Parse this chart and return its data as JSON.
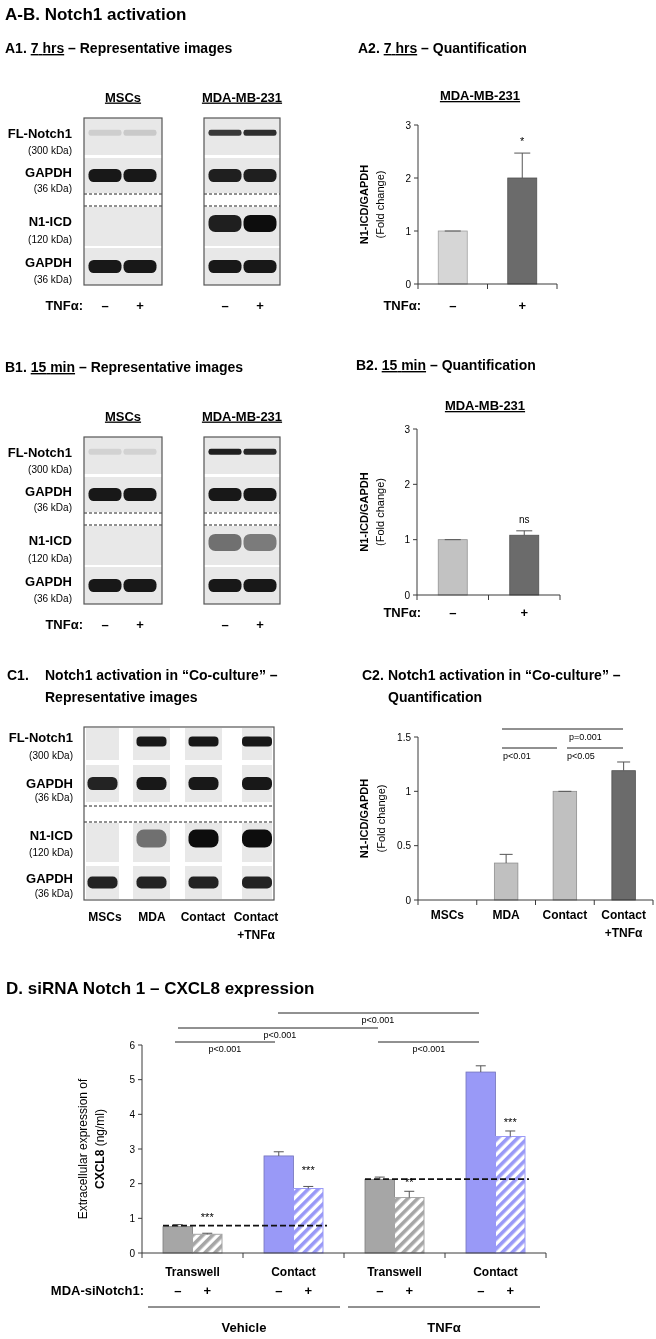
{
  "chart_data": [
    {
      "type": "other",
      "title": "A-B. Notch1 activation",
      "subtitle": "A1. 7 hrs – Representative images",
      "categories": [
        "–",
        "+",
        "–",
        "+"
      ],
      "xlabel": "TNFα:",
      "annotations": [
        "MSCs",
        "MDA-MB-231",
        "FL-Notch1",
        "(300 kDa)",
        "GAPDH",
        "(36 kDa)",
        "N1-ICD",
        "(120 kDa)",
        "GAPDH",
        "(36 kDa)"
      ]
    },
    {
      "type": "bar",
      "title": "A2. 7 hrs – Quantification",
      "subtitle": "MDA-MB-231",
      "categories": [
        "–",
        "+"
      ],
      "xlabel": "TNFα:",
      "ylabel": "N1-ICD/GAPDH\n(Fold change)",
      "values": [
        1,
        2
      ],
      "colors": [
        "#d6d6d6",
        "#6b6b6b"
      ],
      "errors": [
        0,
        [
          2,
          2.47
        ]
      ],
      "value_labels": [
        null,
        "*"
      ],
      "ylim": [
        0,
        3
      ],
      "yticks": [
        0,
        1,
        2,
        3
      ]
    },
    {
      "type": "other",
      "title": "B1. 15 min – Representative images",
      "categories": [
        "–",
        "+",
        "–",
        "+"
      ],
      "xlabel": "TNFα:",
      "annotations": [
        "MSCs",
        "MDA-MB-231",
        "FL-Notch1",
        "(300 kDa)",
        "GAPDH",
        "(36 kDa)",
        "N1-ICD",
        "(120 kDa)",
        "GAPDH",
        "(36 kDa)"
      ]
    },
    {
      "type": "bar",
      "title": "B2. 15 min – Quantification",
      "subtitle": "MDA-MB-231",
      "categories": [
        "–",
        "+"
      ],
      "xlabel": "TNFα:",
      "ylabel": "N1-ICD/GAPDH\n(Fold change)",
      "values": [
        1,
        1.08
      ],
      "colors": [
        "#c2c2c2",
        "#6b6b6b"
      ],
      "errors": [
        0,
        [
          1.08,
          1.16
        ]
      ],
      "value_labels": [
        null,
        "ns"
      ],
      "ylim": [
        0,
        3
      ],
      "yticks": [
        0,
        1,
        2,
        3
      ]
    },
    {
      "type": "other",
      "title": "C1. Notch1 activation in “Co-culture” –\nRepresentative images",
      "categories": [
        "MSCs",
        "MDA",
        "Contact",
        "Contact\n+TNFα"
      ],
      "annotations": [
        "FL-Notch1",
        "(300 kDa)",
        "GAPDH",
        "(36 kDa)",
        "N1-ICD",
        "(120 kDa)",
        "GAPDH",
        "(36 kDa)"
      ]
    },
    {
      "type": "bar",
      "title": "C2. Notch1 activation in “Co-culture” –\nQuantification",
      "categories": [
        "MSCs",
        "MDA",
        "Contact",
        "Contact\n+TNFα"
      ],
      "ylabel": "N1-ICD/GAPDH\n(Fold change)",
      "values": [
        null,
        0.34,
        1,
        1.19
      ],
      "colors": [
        null,
        "#c0c0c0",
        "#c0c0c0",
        "#6b6b6b"
      ],
      "errors": [
        null,
        [
          0.34,
          0.42
        ],
        0,
        [
          1.19,
          1.27
        ]
      ],
      "ylim": [
        0,
        1.5
      ],
      "yticks": [
        0,
        0.5,
        1,
        1.5
      ],
      "annotations": [
        "p=0.001",
        "p<0.01",
        "p<0.05"
      ]
    },
    {
      "type": "bar",
      "title": "D. siRNA Notch 1 – CXCL8 expression",
      "categories": [
        "Transwell",
        "Contact",
        "Transwell",
        "Contact"
      ],
      "xlabel": "MDA-siNotch1:",
      "ylabel": "Extracellular expression of\nCXCL8 (ng/ml)",
      "series": [
        {
          "name": "–",
          "colors": [
            "#a6a6a6",
            "#9999f7",
            "#a6a6a6",
            "#9999f7"
          ],
          "values": [
            0.76,
            2.8,
            2.12,
            5.22
          ],
          "errors": [
            [
              0.76,
              0.82
            ],
            [
              2.8,
              2.92
            ],
            [
              2.12,
              2.19
            ],
            [
              5.22,
              5.4
            ]
          ]
        },
        {
          "name": "+",
          "colors": [
            "#a6a6a6",
            "#9999f7",
            "#a6a6a6",
            "#9999f7"
          ],
          "values": [
            0.54,
            1.86,
            1.6,
            3.36
          ],
          "errors": [
            [
              0.54,
              0.57
            ],
            [
              1.86,
              1.92
            ],
            [
              1.6,
              1.78
            ],
            [
              3.36,
              3.52
            ]
          ],
          "value_labels": [
            "***",
            "***",
            "**",
            "***"
          ]
        }
      ],
      "ylim": [
        0,
        6
      ],
      "yticks": [
        0,
        1,
        2,
        3,
        4,
        5,
        6
      ],
      "ref_lines": [
        {
          "axis": "y",
          "value": 0.79,
          "line_style": "dashed"
        },
        {
          "axis": "y",
          "value": 2.13,
          "line_style": "dashed"
        }
      ],
      "annotations": [
        "p<0.001",
        "p<0.001",
        "p<0.001",
        "p<0.001",
        "Vehicle",
        "TNFα"
      ]
    }
  ]
}
